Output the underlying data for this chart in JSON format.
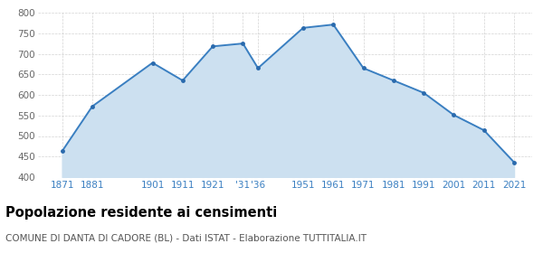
{
  "years": [
    1871,
    1881,
    1901,
    1911,
    1921,
    1931,
    1936,
    1951,
    1961,
    1971,
    1981,
    1991,
    2001,
    2011,
    2021
  ],
  "population": [
    463,
    572,
    678,
    635,
    718,
    725,
    665,
    763,
    771,
    665,
    635,
    605,
    551,
    514,
    436
  ],
  "line_color": "#3a7fc1",
  "fill_color": "#cce0f0",
  "marker_color": "#2a6aad",
  "background_color": "#ffffff",
  "grid_color": "#c8c8c8",
  "title": "Popolazione residente ai censimenti",
  "subtitle": "COMUNE DI DANTA DI CADORE (BL) - Dati ISTAT - Elaborazione TUTTITALIA.IT",
  "ylim": [
    400,
    800
  ],
  "yticks": [
    400,
    450,
    500,
    550,
    600,
    650,
    700,
    750,
    800
  ],
  "xtick_positions": [
    1871,
    1881,
    1901,
    1911,
    1921,
    1931,
    1936,
    1951,
    1961,
    1971,
    1981,
    1991,
    2001,
    2011,
    2021
  ],
  "xtick_labels": [
    "1871",
    "1881",
    "1901",
    "1911",
    "1921",
    "'31",
    "'36",
    "1951",
    "1961",
    "1971",
    "1981",
    "1991",
    "2001",
    "2011",
    "2021"
  ],
  "xlim_left": 1863,
  "xlim_right": 2027,
  "title_fontsize": 10.5,
  "subtitle_fontsize": 7.5,
  "tick_label_color": "#3a7fc1",
  "tick_label_fontsize": 7.5,
  "ytick_label_color": "#666666",
  "ytick_label_fontsize": 7.5
}
